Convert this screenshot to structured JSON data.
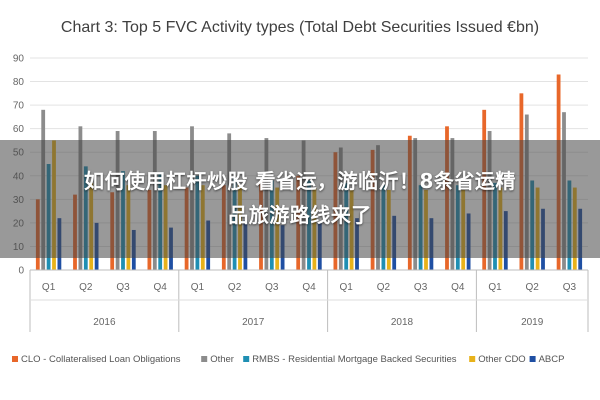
{
  "colors": {
    "CLO": "#e8672a",
    "Other": "#8c8c8c",
    "RMBS": "#1f8fb3",
    "OtherCDO": "#e8b21a",
    "ABCP": "#1f4fa3",
    "grid": "#e3e3e3",
    "axis": "#bdbdbd"
  },
  "overlay": {
    "line1": "如何使用杠杆炒股 看省运，游临沂！8条省运精",
    "line2": "品旅游路线来了"
  },
  "chart_data": {
    "type": "bar",
    "title": "Chart 3: Top 5 FVC Activity types (Total Debt Securities Issued €bn)",
    "xlabel": "",
    "ylabel": "",
    "ylim": [
      0,
      90
    ],
    "yticks": [
      "0",
      "10",
      "20",
      "30",
      "40",
      "50",
      "60",
      "70",
      "80",
      "90"
    ],
    "grid": true,
    "legend_position": "bottom",
    "categories": [
      "Q1",
      "Q2",
      "Q3",
      "Q4",
      "Q1",
      "Q2",
      "Q3",
      "Q4",
      "Q1",
      "Q2",
      "Q3",
      "Q4",
      "Q1",
      "Q2",
      "Q3"
    ],
    "years": [
      {
        "label": "2016",
        "count": 4
      },
      {
        "label": "2017",
        "count": 4
      },
      {
        "label": "2018",
        "count": 4
      },
      {
        "label": "2019",
        "count": 3
      }
    ],
    "series": [
      {
        "name": "CLO - Collateralised Loan Obligations",
        "color_key": "CLO",
        "values": [
          30,
          32,
          33,
          34,
          35,
          36,
          38,
          40,
          50,
          51,
          57,
          61,
          68,
          75,
          83
        ]
      },
      {
        "name": "Other",
        "color_key": "Other",
        "values": [
          68,
          61,
          59,
          59,
          61,
          58,
          56,
          55,
          52,
          53,
          56,
          56,
          59,
          66,
          67
        ]
      },
      {
        "name": "RMBS - Residential Mortgage Backed Securities",
        "color_key": "RMBS",
        "values": [
          45,
          44,
          42,
          41,
          40,
          39,
          38,
          38,
          37,
          36,
          36,
          36,
          37,
          38,
          38
        ]
      },
      {
        "name": "Other CDO",
        "color_key": "OtherCDO",
        "values": [
          55,
          37,
          36,
          36,
          36,
          36,
          35,
          35,
          34,
          34,
          34,
          34,
          35,
          35,
          35
        ]
      },
      {
        "name": "ABCP",
        "color_key": "ABCP",
        "values": [
          22,
          20,
          17,
          18,
          21,
          21,
          19,
          20,
          22,
          23,
          22,
          24,
          25,
          26,
          26
        ]
      }
    ]
  }
}
